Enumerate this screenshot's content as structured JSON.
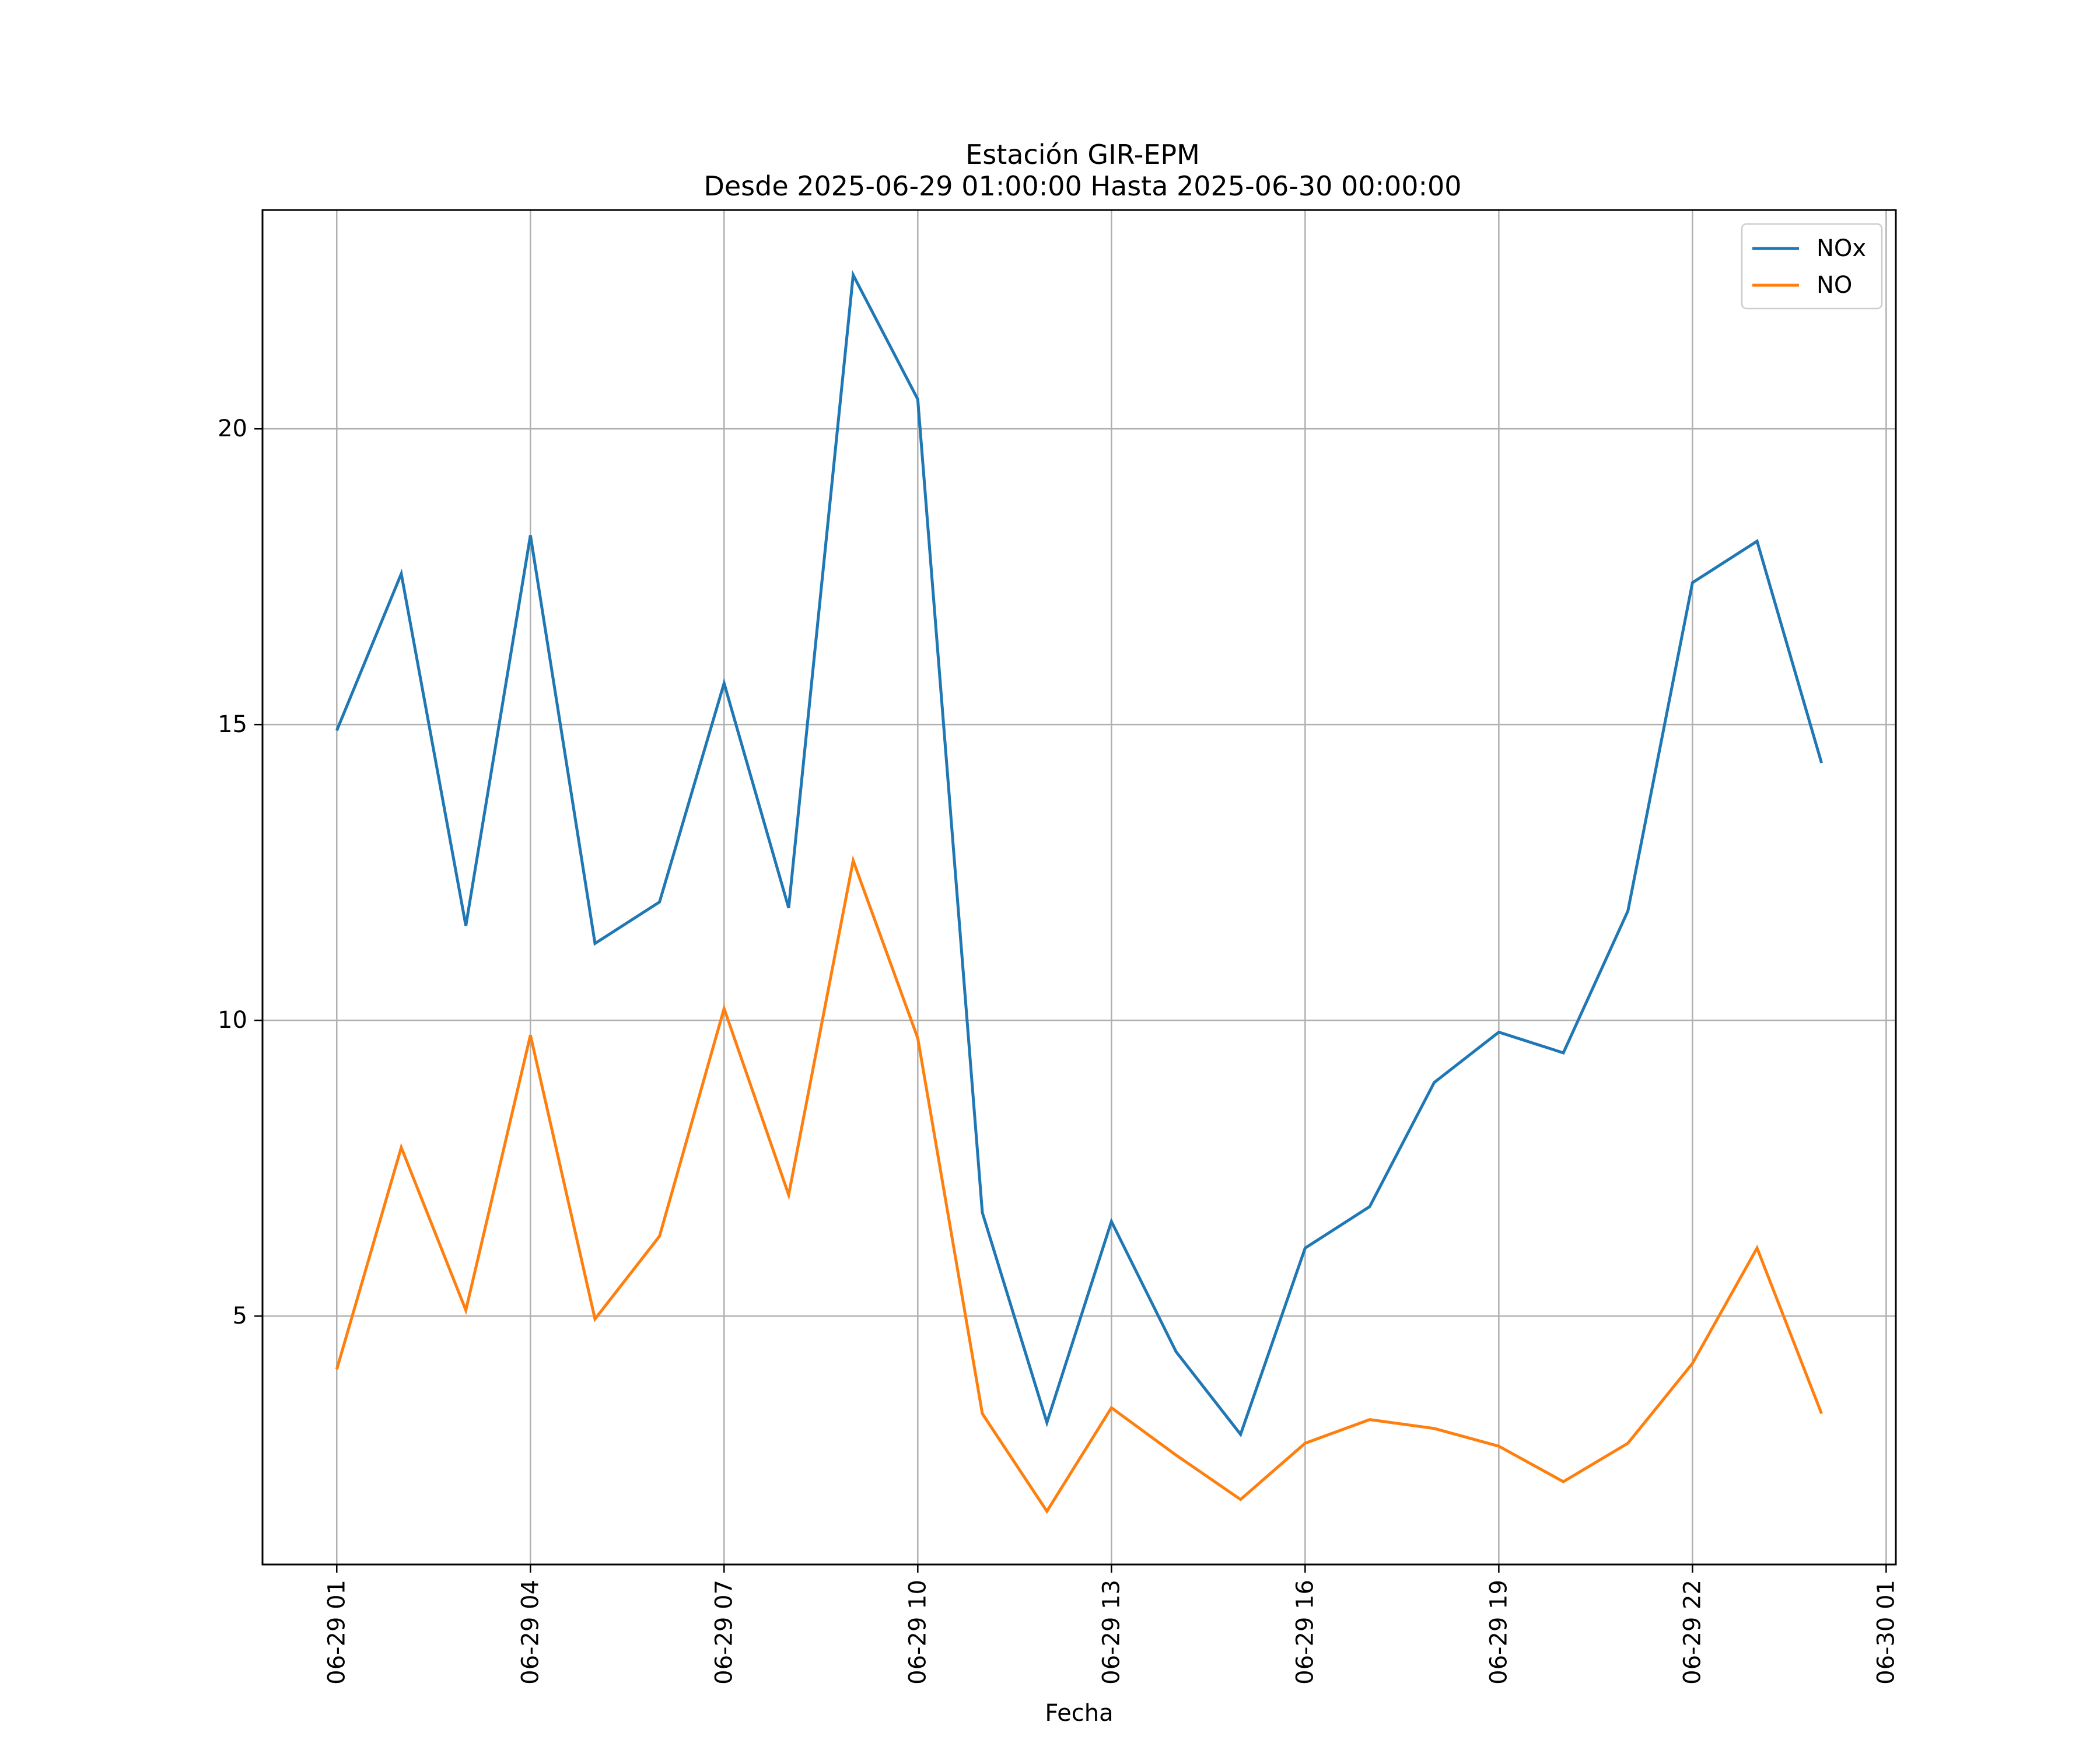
{
  "chart_data": {
    "type": "line",
    "title": "Estación GIR-EPM",
    "subtitle": "Desde 2025-06-29 01:00:00 Hasta 2025-06-30 00:00:00",
    "xlabel": "Fecha",
    "ylabel": "",
    "x": [
      "06-29 01",
      "06-29 02",
      "06-29 03",
      "06-29 04",
      "06-29 05",
      "06-29 06",
      "06-29 07",
      "06-29 08",
      "06-29 09",
      "06-29 10",
      "06-29 11",
      "06-29 12",
      "06-29 13",
      "06-29 14",
      "06-29 15",
      "06-29 16",
      "06-29 17",
      "06-29 18",
      "06-29 19",
      "06-29 20",
      "06-29 21",
      "06-29 22",
      "06-29 23",
      "06-30 00"
    ],
    "xlim": [
      "06-29 00",
      "06-30 02"
    ],
    "ylim": [
      0.8,
      23.7
    ],
    "xticks": [
      "06-29 01",
      "06-29 04",
      "06-29 07",
      "06-29 10",
      "06-29 13",
      "06-29 16",
      "06-29 19",
      "06-29 22",
      "06-30 01"
    ],
    "yticks": [
      5,
      10,
      15,
      20
    ],
    "grid": true,
    "legend_position": "top-right",
    "series": [
      {
        "name": "NOx",
        "color": "#1f77b4",
        "values": [
          14.9,
          17.55,
          11.6,
          18.2,
          11.3,
          12.0,
          15.7,
          11.9,
          22.6,
          20.5,
          6.75,
          3.2,
          6.6,
          4.4,
          3.0,
          6.15,
          6.85,
          8.95,
          9.8,
          9.45,
          11.85,
          17.4,
          18.1,
          14.35
        ]
      },
      {
        "name": "NO",
        "color": "#ff7f0e",
        "values": [
          4.1,
          7.85,
          5.1,
          9.75,
          4.95,
          6.35,
          10.2,
          7.05,
          12.7,
          9.7,
          3.35,
          1.7,
          3.45,
          2.65,
          1.9,
          2.85,
          3.25,
          3.1,
          2.8,
          2.2,
          2.85,
          4.2,
          6.15,
          3.35
        ]
      }
    ]
  }
}
